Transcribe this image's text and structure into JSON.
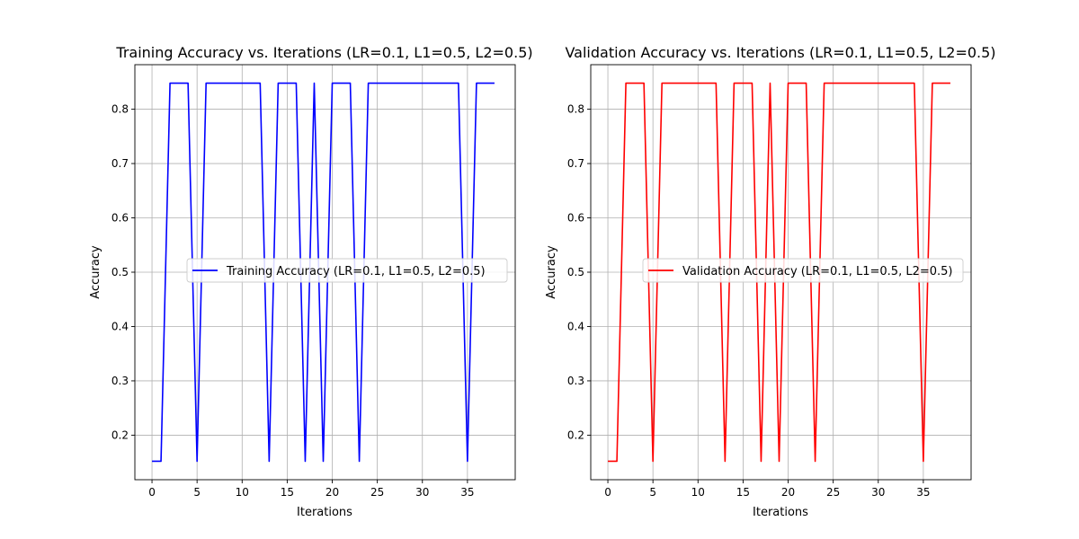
{
  "chart_data": [
    {
      "type": "line",
      "title": "Training Accuracy vs. Iterations (LR=0.1, L1=0.5, L2=0.5)",
      "xlabel": "Iterations",
      "ylabel": "Accuracy",
      "xlim": [
        -1.9,
        40.3
      ],
      "ylim": [
        0.118,
        0.882
      ],
      "xticks": [
        0,
        5,
        10,
        15,
        20,
        25,
        30,
        35
      ],
      "yticks": [
        0.2,
        0.3,
        0.4,
        0.5,
        0.6,
        0.7,
        0.8
      ],
      "grid": true,
      "legend_position": "center-right",
      "series": [
        {
          "name": "Training Accuracy (LR=0.1, L1=0.5, L2=0.5)",
          "color": "#0000ff",
          "x": [
            0,
            1,
            2,
            3,
            4,
            5,
            6,
            7,
            8,
            9,
            10,
            11,
            12,
            13,
            14,
            15,
            16,
            17,
            18,
            19,
            20,
            21,
            22,
            23,
            24,
            25,
            26,
            27,
            28,
            29,
            30,
            31,
            32,
            33,
            34,
            35,
            36,
            37,
            38
          ],
          "values": [
            0.152,
            0.152,
            0.848,
            0.848,
            0.848,
            0.152,
            0.848,
            0.848,
            0.848,
            0.848,
            0.848,
            0.848,
            0.848,
            0.152,
            0.848,
            0.848,
            0.848,
            0.152,
            0.848,
            0.152,
            0.848,
            0.848,
            0.848,
            0.152,
            0.848,
            0.848,
            0.848,
            0.848,
            0.848,
            0.848,
            0.848,
            0.848,
            0.848,
            0.848,
            0.848,
            0.152,
            0.848,
            0.848,
            0.848
          ]
        }
      ]
    },
    {
      "type": "line",
      "title": "Validation Accuracy vs. Iterations (LR=0.1, L1=0.5, L2=0.5)",
      "xlabel": "Iterations",
      "ylabel": "Accuracy",
      "xlim": [
        -1.9,
        40.3
      ],
      "ylim": [
        0.118,
        0.882
      ],
      "xticks": [
        0,
        5,
        10,
        15,
        20,
        25,
        30,
        35
      ],
      "yticks": [
        0.2,
        0.3,
        0.4,
        0.5,
        0.6,
        0.7,
        0.8
      ],
      "grid": true,
      "legend_position": "center-right",
      "series": [
        {
          "name": "Validation Accuracy (LR=0.1, L1=0.5, L2=0.5)",
          "color": "#ff0000",
          "x": [
            0,
            1,
            2,
            3,
            4,
            5,
            6,
            7,
            8,
            9,
            10,
            11,
            12,
            13,
            14,
            15,
            16,
            17,
            18,
            19,
            20,
            21,
            22,
            23,
            24,
            25,
            26,
            27,
            28,
            29,
            30,
            31,
            32,
            33,
            34,
            35,
            36,
            37,
            38
          ],
          "values": [
            0.152,
            0.152,
            0.848,
            0.848,
            0.848,
            0.152,
            0.848,
            0.848,
            0.848,
            0.848,
            0.848,
            0.848,
            0.848,
            0.152,
            0.848,
            0.848,
            0.848,
            0.152,
            0.848,
            0.152,
            0.848,
            0.848,
            0.848,
            0.152,
            0.848,
            0.848,
            0.848,
            0.848,
            0.848,
            0.848,
            0.848,
            0.848,
            0.848,
            0.848,
            0.848,
            0.152,
            0.848,
            0.848,
            0.848
          ]
        }
      ]
    }
  ]
}
